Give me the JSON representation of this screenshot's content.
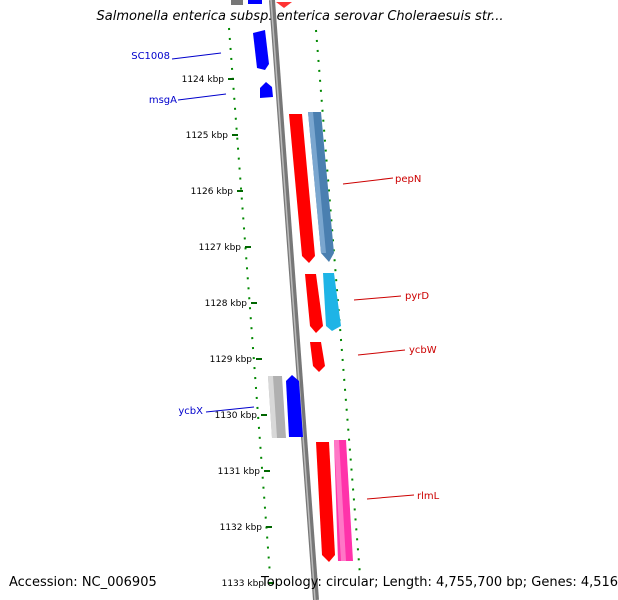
{
  "title": "Salmonella enterica subsp. enterica serovar Choleraesuis str...",
  "accession": "Accession: NC_006905",
  "summary": "Topology: circular; Length: 4,755,700 bp; Genes: 4,516",
  "ticks": [
    "1124 kbp",
    "1125 kbp",
    "1126 kbp",
    "1127 kbp",
    "1128 kbp",
    "1129 kbp",
    "1130 kbp",
    "1131 kbp",
    "1132 kbp",
    "1133 kbp"
  ],
  "genes": [
    {
      "name": "SC1008",
      "strand": "reverse",
      "color": "#0000ff"
    },
    {
      "name": "msgA",
      "strand": "reverse",
      "color": "#0000ff"
    },
    {
      "name": "pepN",
      "strand": "forward",
      "color": "#ff0000",
      "shadow_color": "#4a7fb0"
    },
    {
      "name": "pyrD",
      "strand": "forward",
      "color": "#ff0000",
      "shadow_color": "#1eb4e6"
    },
    {
      "name": "ycbW",
      "strand": "forward",
      "color": "#ff0000"
    },
    {
      "name": "ycbX",
      "strand": "reverse",
      "color": "#0000ff",
      "shadow_color": "#b0b0b0"
    },
    {
      "name": "rlmL",
      "strand": "forward",
      "color": "#ff0000",
      "shadow_color": "#ff33aa"
    }
  ],
  "colors": {
    "forward_label": "#cc0000",
    "reverse_label": "#0000cc",
    "backbone": "#888888",
    "dotted_track": "#008800"
  }
}
